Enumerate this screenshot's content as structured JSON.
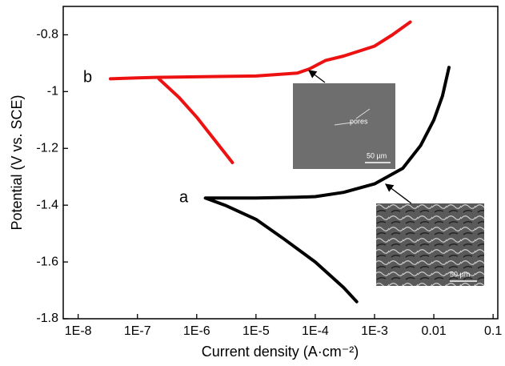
{
  "chart_data": {
    "type": "line",
    "x_label": "Current density (A·cm⁻²)",
    "y_label": "Potential (V vs. SCE)",
    "x_log": true,
    "xlim": [
      5.6e-09,
      0.12
    ],
    "xticks": [
      {
        "value": 1e-08,
        "label": "1E-8"
      },
      {
        "value": 1e-07,
        "label": "1E-7"
      },
      {
        "value": 1e-06,
        "label": "1E-6"
      },
      {
        "value": 1e-05,
        "label": "1E-5"
      },
      {
        "value": 0.0001,
        "label": "1E-4"
      },
      {
        "value": 0.001,
        "label": "1E-3"
      },
      0.01,
      0.1
    ],
    "ylim": [
      -1.8,
      -0.7
    ],
    "yticks": [
      -1.8,
      -1.6,
      -1.4,
      -1.2,
      -1.0,
      -0.8
    ],
    "grid": false,
    "series": [
      {
        "color": "#000000",
        "x": [
          0.0005,
          0.0003,
          0.0001,
          3e-05,
          1e-05,
          3e-06,
          1.4e-06,
          2e-06,
          1e-05,
          5e-05,
          0.0001,
          0.0003,
          0.001,
          0.003,
          0.006,
          0.01,
          0.014,
          0.018
        ],
        "values": [
          -1.74,
          -1.69,
          -1.6,
          -1.52,
          -1.45,
          -1.4,
          -1.375,
          -1.375,
          -1.375,
          -1.372,
          -1.37,
          -1.355,
          -1.325,
          -1.27,
          -1.19,
          -1.1,
          -1.015,
          -0.915
        ]
      },
      {
        "color": "#ee1111",
        "x": [
          3.5e-08,
          1e-07,
          2e-07,
          1e-06,
          1e-05,
          5e-05,
          8e-05,
          0.00015,
          0.0003,
          0.001,
          0.002,
          0.004,
          null,
          2.3e-07,
          5e-07,
          1e-06,
          2e-06,
          4e-06
        ],
        "values": [
          -0.955,
          -0.952,
          -0.95,
          -0.948,
          -0.945,
          -0.935,
          -0.92,
          -0.89,
          -0.875,
          -0.84,
          -0.8,
          -0.755,
          null,
          -0.955,
          -1.02,
          -1.09,
          -1.17,
          -1.25
        ]
      }
    ],
    "annotations": [
      "a",
      "b"
    ],
    "insets": [
      {
        "labels": [
          "pores",
          "50 µm"
        ]
      },
      {
        "labels": [
          "50 µm"
        ]
      }
    ]
  }
}
